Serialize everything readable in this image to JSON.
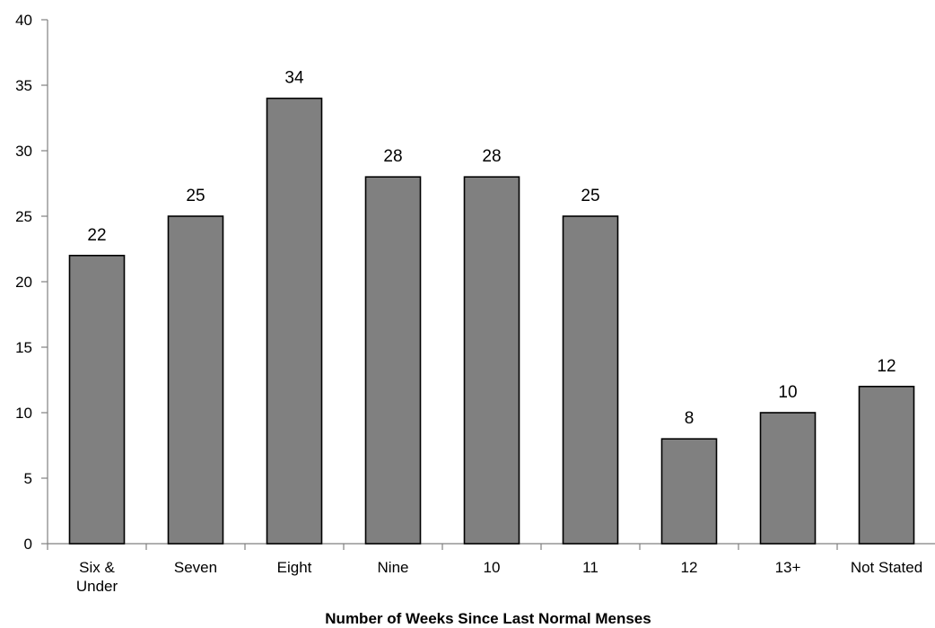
{
  "chart_data": {
    "type": "bar",
    "title": "",
    "xlabel": "Number of Weeks Since Last Normal Menses",
    "ylabel": "",
    "categories": [
      [
        "Six &",
        "Under"
      ],
      [
        "Seven"
      ],
      [
        "Eight"
      ],
      [
        "Nine"
      ],
      [
        "10"
      ],
      [
        "11"
      ],
      [
        "12"
      ],
      [
        "13+"
      ],
      [
        "Not Stated"
      ]
    ],
    "values": [
      22,
      25,
      34,
      28,
      28,
      25,
      8,
      10,
      12
    ],
    "ylim": [
      0,
      40
    ],
    "yticks": [
      0,
      5,
      10,
      15,
      20,
      25,
      30,
      35,
      40
    ],
    "grid": false,
    "legend": "none",
    "colors": {
      "bar_fill": "#808080",
      "bar_stroke": "#000000",
      "axis": "#808080",
      "text": "#000000"
    }
  }
}
